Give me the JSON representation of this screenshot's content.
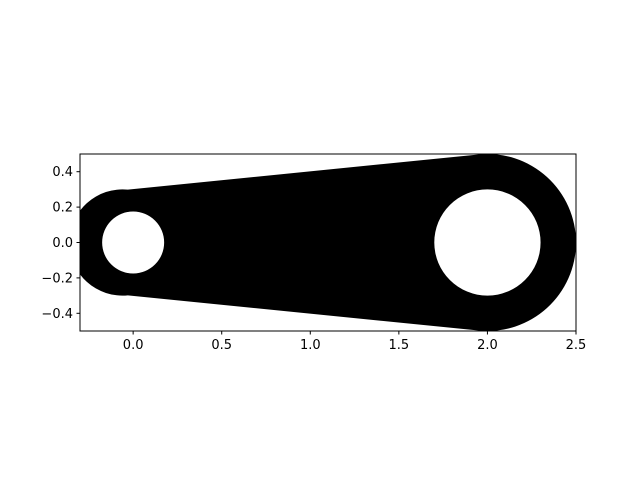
{
  "chart_data": {
    "type": "area",
    "title": "",
    "xlabel": "",
    "ylabel": "",
    "xlim": [
      -0.3,
      2.5
    ],
    "ylim": [
      -0.5,
      0.5
    ],
    "x_ticks": [
      {
        "value": 0.0,
        "label": "0.0"
      },
      {
        "value": 0.5,
        "label": "0.5"
      },
      {
        "value": 1.0,
        "label": "1.0"
      },
      {
        "value": 1.5,
        "label": "1.5"
      },
      {
        "value": 2.0,
        "label": "2.0"
      },
      {
        "value": 2.5,
        "label": "2.5"
      }
    ],
    "y_ticks": [
      {
        "value": 0.4,
        "label": "0.4"
      },
      {
        "value": 0.2,
        "label": "0.2"
      },
      {
        "value": 0.0,
        "label": "0.0"
      },
      {
        "value": -0.2,
        "label": "−0.2"
      },
      {
        "value": -0.4,
        "label": "−0.4"
      }
    ],
    "grid": false,
    "aspect": "equal",
    "shape": {
      "fill_color": "#000000",
      "hole_color": "#ffffff",
      "small_end": {
        "center": [
          0.0,
          0.0
        ],
        "outer_radius": 0.3,
        "hole_radius": 0.175
      },
      "large_end": {
        "center": [
          2.0,
          0.0
        ],
        "outer_radius": 0.5,
        "hole_radius": 0.3
      }
    }
  }
}
